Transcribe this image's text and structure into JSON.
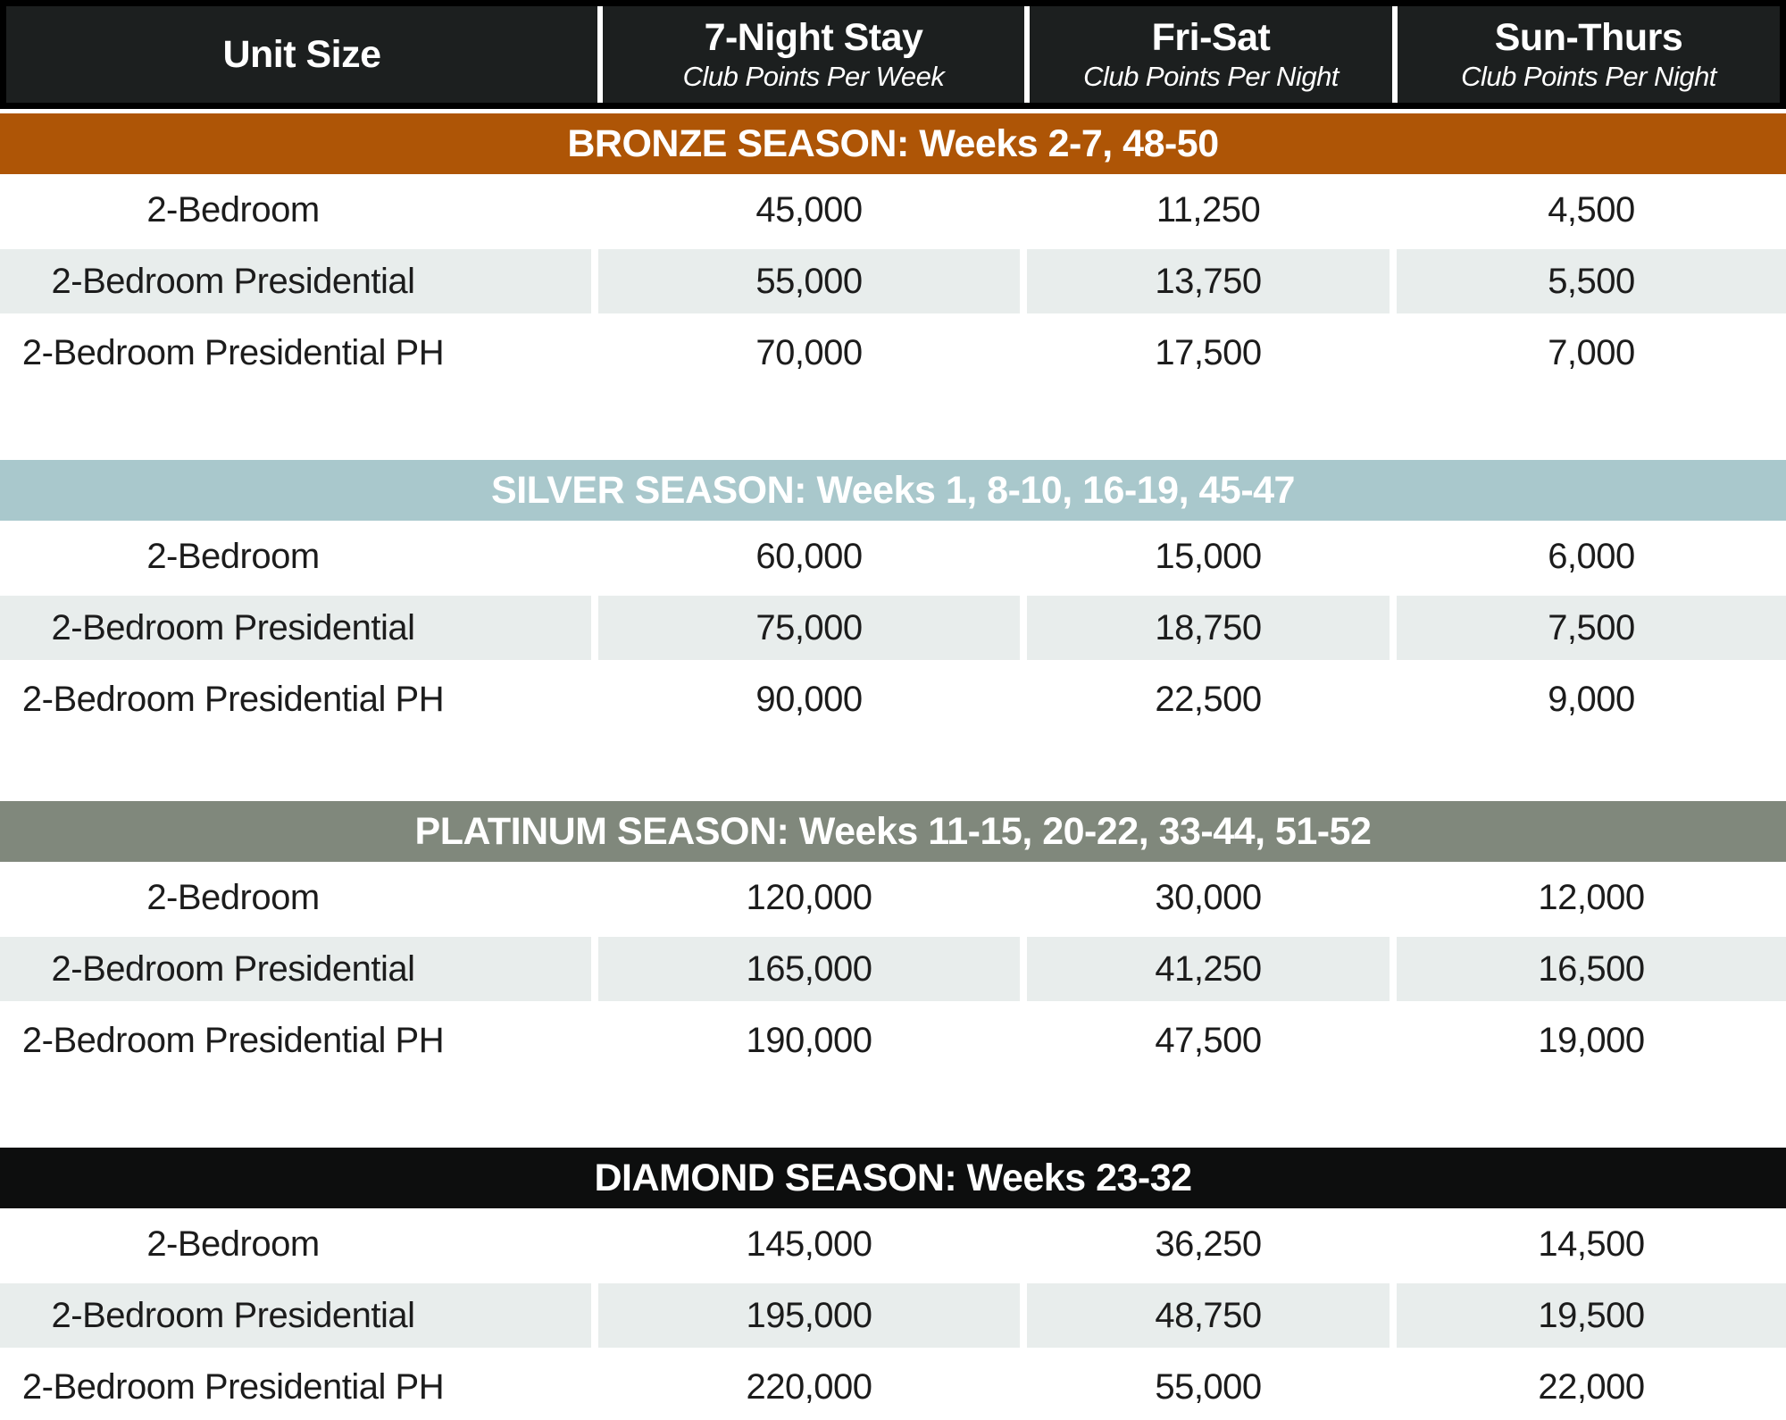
{
  "header": {
    "columns": [
      {
        "title": "Unit Size",
        "subtitle": ""
      },
      {
        "title": "7-Night Stay",
        "subtitle": "Club Points Per Week"
      },
      {
        "title": "Fri-Sat",
        "subtitle": "Club Points Per Night"
      },
      {
        "title": "Sun-Thurs",
        "subtitle": "Club Points Per Night"
      }
    ]
  },
  "seasons": [
    {
      "label": "BRONZE SEASON: Weeks 2-7, 48-50",
      "color": "#ae5506",
      "rows": [
        {
          "unit": "2-Bedroom",
          "week": "45,000",
          "fri_sat": "11,250",
          "sun_thurs": "4,500"
        },
        {
          "unit": "2-Bedroom Presidential",
          "week": "55,000",
          "fri_sat": "13,750",
          "sun_thurs": "5,500"
        },
        {
          "unit": "2-Bedroom Presidential PH",
          "week": "70,000",
          "fri_sat": "17,500",
          "sun_thurs": "7,000"
        }
      ]
    },
    {
      "label": "SILVER SEASON: Weeks 1, 8-10, 16-19, 45-47",
      "color": "#a9c8cc",
      "rows": [
        {
          "unit": "2-Bedroom",
          "week": "60,000",
          "fri_sat": "15,000",
          "sun_thurs": "6,000"
        },
        {
          "unit": "2-Bedroom Presidential",
          "week": "75,000",
          "fri_sat": "18,750",
          "sun_thurs": "7,500"
        },
        {
          "unit": "2-Bedroom Presidential PH",
          "week": "90,000",
          "fri_sat": "22,500",
          "sun_thurs": "9,000"
        }
      ]
    },
    {
      "label": "PLATINUM SEASON: Weeks 11-15, 20-22, 33-44, 51-52",
      "color": "#80887c",
      "rows": [
        {
          "unit": "2-Bedroom",
          "week": "120,000",
          "fri_sat": "30,000",
          "sun_thurs": "12,000"
        },
        {
          "unit": "2-Bedroom Presidential",
          "week": "165,000",
          "fri_sat": "41,250",
          "sun_thurs": "16,500"
        },
        {
          "unit": "2-Bedroom Presidential PH",
          "week": "190,000",
          "fri_sat": "47,500",
          "sun_thurs": "19,000"
        }
      ]
    },
    {
      "label": "DIAMOND SEASON: Weeks 23-32",
      "color": "#0d0e0e",
      "rows": [
        {
          "unit": "2-Bedroom",
          "week": "145,000",
          "fri_sat": "36,250",
          "sun_thurs": "14,500"
        },
        {
          "unit": "2-Bedroom Presidential",
          "week": "195,000",
          "fri_sat": "48,750",
          "sun_thurs": "19,500"
        },
        {
          "unit": "2-Bedroom Presidential PH",
          "week": "220,000",
          "fri_sat": "55,000",
          "sun_thurs": "22,000"
        }
      ]
    }
  ],
  "colors": {
    "header_bg": "#1c1f1f",
    "alt_row_bg": "#e8edec",
    "bronze": "#ae5506",
    "silver": "#a9c8cc",
    "platinum": "#80887c",
    "diamond": "#0d0e0e"
  }
}
